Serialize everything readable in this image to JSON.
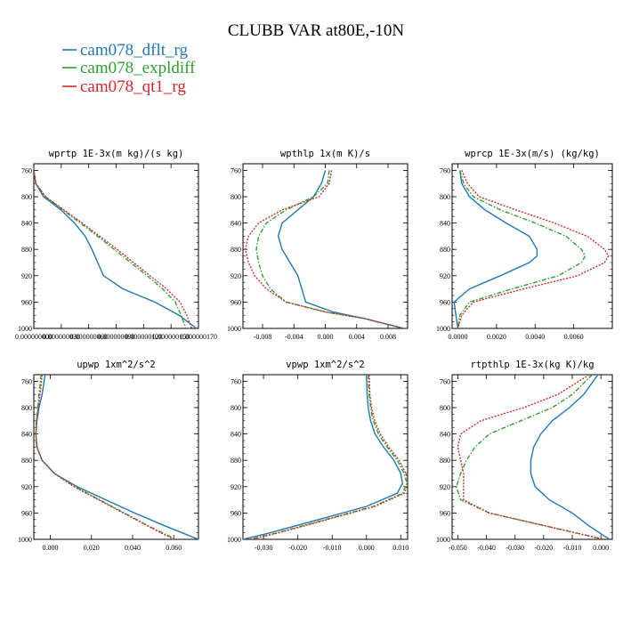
{
  "figure": {
    "title": "CLUBB VAR at80E,-10N",
    "legend": [
      {
        "name": "cam078_dflt_rg",
        "color": "#1f77b4",
        "dash": "solid"
      },
      {
        "name": "cam078_expldiff",
        "color": "#2ca02c",
        "dash": "dashdot"
      },
      {
        "name": "cam078_qt1_rg",
        "color": "#d62728",
        "dash": "dotted"
      }
    ]
  },
  "chart_data": [
    {
      "type": "line",
      "title": "wprtp  1E-3x(m kg)/(s kg)",
      "xlim": [
        0,
        1.7e-07
      ],
      "ylim": [
        1000,
        750
      ],
      "y_ticks": [
        "760",
        "800",
        "840",
        "880",
        "920",
        "960",
        "1000"
      ],
      "x_tick_labels": [
        "0.000000000",
        "0.000000030",
        "0.000000060",
        "0.000000090",
        "0.000000120",
        "0.000000150",
        "0.000000170"
      ],
      "y": [
        760,
        780,
        800,
        820,
        840,
        860,
        880,
        900,
        920,
        940,
        960,
        980,
        1000
      ],
      "series": [
        {
          "name": "cam078_dflt_rg",
          "x": [
            0,
            2e-09,
            1e-08,
            2.8e-08,
            4.2e-08,
            5.3e-08,
            6e-08,
            6.6e-08,
            7.2e-08,
            9.2e-08,
            1.25e-07,
            1.5e-07,
            1.68e-07
          ]
        },
        {
          "name": "cam078_expldiff",
          "x": [
            0,
            2e-09,
            1.2e-08,
            3e-08,
            4.8e-08,
            6.6e-08,
            8.3e-08,
            1e-07,
            1.17e-07,
            1.33e-07,
            1.46e-07,
            1.52e-07,
            1.57e-07
          ]
        },
        {
          "name": "cam078_qt1_rg",
          "x": [
            0,
            2e-09,
            1.2e-08,
            3.1e-08,
            5e-08,
            6.8e-08,
            8.6e-08,
            1.03e-07,
            1.2e-07,
            1.37e-07,
            1.51e-07,
            1.58e-07,
            1.63e-07
          ]
        }
      ]
    },
    {
      "type": "line",
      "title": "wpthlp  1x(m K)/s",
      "xlim": [
        -0.0105,
        0.0105
      ],
      "ylim": [
        1000,
        750
      ],
      "y_ticks": [
        "760",
        "800",
        "840",
        "880",
        "920",
        "960",
        "1000"
      ],
      "x_ticks": [
        -0.008,
        -0.004,
        0,
        0.004,
        0.008
      ],
      "x_tick_labels": [
        "-0.008",
        "-0.004",
        "0.000",
        "0.004",
        "0.008"
      ],
      "y": [
        760,
        780,
        800,
        820,
        840,
        860,
        880,
        900,
        920,
        940,
        960,
        975,
        985,
        1000
      ],
      "series": [
        {
          "name": "cam078_dflt_rg",
          "x": [
            0.0,
            -0.0005,
            -0.0015,
            -0.0035,
            -0.0055,
            -0.006,
            -0.0055,
            -0.0045,
            -0.0035,
            -0.003,
            -0.0025,
            0.001,
            0.005,
            0.01
          ]
        },
        {
          "name": "cam078_expldiff",
          "x": [
            0.0005,
            0.0003,
            -0.0015,
            -0.005,
            -0.0075,
            -0.0085,
            -0.0088,
            -0.0085,
            -0.008,
            -0.007,
            -0.005,
            0.0,
            0.005,
            0.01
          ]
        },
        {
          "name": "cam078_qt1_rg",
          "x": [
            0.0008,
            0.0005,
            -0.0008,
            -0.0055,
            -0.0085,
            -0.0098,
            -0.0102,
            -0.0098,
            -0.009,
            -0.0075,
            -0.005,
            0.0,
            0.005,
            0.01
          ]
        }
      ]
    },
    {
      "type": "line",
      "title": "wprcp  1E-3x(m/s) (kg/kg)",
      "xlim": [
        -0.0003,
        0.008
      ],
      "ylim": [
        1000,
        750
      ],
      "y_ticks": [
        "760",
        "800",
        "840",
        "880",
        "920",
        "960",
        "1000"
      ],
      "x_ticks": [
        0,
        0.002,
        0.004,
        0.006
      ],
      "x_tick_labels": [
        "0.0000",
        "0.0020",
        "0.0040",
        "0.0060"
      ],
      "y": [
        760,
        780,
        800,
        820,
        840,
        860,
        880,
        890,
        900,
        920,
        940,
        960,
        980,
        1000
      ],
      "series": [
        {
          "name": "cam078_dflt_rg",
          "x": [
            0.0001,
            0.0002,
            0.0006,
            0.0014,
            0.0025,
            0.0037,
            0.0041,
            0.0041,
            0.0037,
            0.0022,
            0.0006,
            -0.0002,
            -0.0001,
            0
          ]
        },
        {
          "name": "cam078_expldiff",
          "x": [
            0.0001,
            0.0003,
            0.0008,
            0.0022,
            0.004,
            0.0056,
            0.0064,
            0.0066,
            0.0064,
            0.0052,
            0.0028,
            0.0006,
            0.0001,
            0
          ]
        },
        {
          "name": "cam078_qt1_rg",
          "x": [
            0.0002,
            0.0005,
            0.0011,
            0.003,
            0.005,
            0.0067,
            0.0076,
            0.0078,
            0.0076,
            0.0062,
            0.0034,
            0.0008,
            0.0002,
            0
          ]
        }
      ]
    },
    {
      "type": "line",
      "title": "upwp  1xm^2/s^2",
      "xlim": [
        -0.008,
        0.072
      ],
      "ylim": [
        1000,
        750
      ],
      "y_ticks": [
        "760",
        "800",
        "840",
        "880",
        "920",
        "960",
        "1000"
      ],
      "x_ticks": [
        0,
        0.02,
        0.04,
        0.06
      ],
      "x_tick_labels": [
        "0.000",
        "0.020",
        "0.040",
        "0.060"
      ],
      "y": [
        750,
        780,
        800,
        820,
        840,
        860,
        880,
        900,
        920,
        940,
        960,
        980,
        1000
      ],
      "series": [
        {
          "name": "cam078_dflt_rg",
          "x": [
            -0.0025,
            -0.004,
            -0.0055,
            -0.0065,
            -0.007,
            -0.0065,
            -0.004,
            0.002,
            0.013,
            0.027,
            0.041,
            0.056,
            0.072
          ]
        },
        {
          "name": "cam078_expldiff",
          "x": [
            -0.0045,
            -0.0055,
            -0.006,
            -0.0068,
            -0.007,
            -0.0065,
            -0.004,
            0.002,
            0.012,
            0.024,
            0.036,
            0.048,
            0.061
          ]
        },
        {
          "name": "cam078_qt1_rg",
          "x": [
            -0.004,
            -0.005,
            -0.0058,
            -0.0066,
            -0.007,
            -0.0065,
            -0.004,
            0.002,
            0.0115,
            0.0235,
            0.0355,
            0.0475,
            0.06
          ]
        }
      ]
    },
    {
      "type": "line",
      "title": "vpwp  1xm^2/s^2",
      "xlim": [
        -0.036,
        0.012
      ],
      "ylim": [
        1000,
        750
      ],
      "y_ticks": [
        "760",
        "800",
        "840",
        "880",
        "920",
        "960",
        "1000"
      ],
      "x_ticks": [
        -0.03,
        -0.02,
        -0.01,
        0,
        0.01
      ],
      "x_tick_labels": [
        "-0.030",
        "-0.020",
        "-0.010",
        "0.000",
        "0.010"
      ],
      "y": [
        750,
        780,
        800,
        820,
        840,
        860,
        880,
        900,
        915,
        930,
        950,
        970,
        990,
        1000
      ],
      "series": [
        {
          "name": "cam078_dflt_rg",
          "x": [
            0.0,
            0.0002,
            0.0005,
            0.0012,
            0.0025,
            0.005,
            0.008,
            0.01,
            0.0105,
            0.009,
            0.0,
            -0.014,
            -0.028,
            -0.036
          ]
        },
        {
          "name": "cam078_expldiff",
          "x": [
            0.0005,
            0.0008,
            0.0012,
            0.002,
            0.0035,
            0.006,
            0.009,
            0.011,
            0.0118,
            0.0105,
            0.002,
            -0.012,
            -0.026,
            -0.034
          ]
        },
        {
          "name": "cam078_qt1_rg",
          "x": [
            0.0008,
            0.001,
            0.0015,
            0.0024,
            0.004,
            0.0065,
            0.0095,
            0.0115,
            0.0122,
            0.011,
            0.0025,
            -0.0115,
            -0.0255,
            -0.0335
          ]
        }
      ]
    },
    {
      "type": "line",
      "title": "rtpthlp  1E-3x(kg K)/kg",
      "xlim": [
        -0.052,
        0.004
      ],
      "ylim": [
        1000,
        750
      ],
      "y_ticks": [
        "760",
        "800",
        "840",
        "880",
        "920",
        "960",
        "1000"
      ],
      "x_ticks": [
        -0.05,
        -0.04,
        -0.03,
        -0.02,
        -0.01,
        0
      ],
      "x_tick_labels": [
        "-0.050",
        "-0.040",
        "-0.030",
        "-0.020",
        "-0.010",
        "0.000"
      ],
      "y": [
        750,
        780,
        800,
        820,
        840,
        860,
        880,
        900,
        920,
        940,
        960,
        980,
        1000
      ],
      "series": [
        {
          "name": "cam078_dflt_rg",
          "x": [
            -0.001,
            -0.006,
            -0.011,
            -0.017,
            -0.021,
            -0.0235,
            -0.0245,
            -0.0245,
            -0.023,
            -0.018,
            -0.01,
            -0.004,
            0.003
          ]
        },
        {
          "name": "cam078_expldiff",
          "x": [
            -0.003,
            -0.01,
            -0.017,
            -0.028,
            -0.039,
            -0.044,
            -0.047,
            -0.049,
            -0.0505,
            -0.049,
            -0.039,
            -0.019,
            0.001
          ]
        },
        {
          "name": "cam078_qt1_rg",
          "x": [
            -0.004,
            -0.015,
            -0.027,
            -0.042,
            -0.049,
            -0.05,
            -0.049,
            -0.048,
            -0.048,
            -0.048,
            -0.039,
            -0.019,
            0.001
          ]
        }
      ]
    }
  ]
}
